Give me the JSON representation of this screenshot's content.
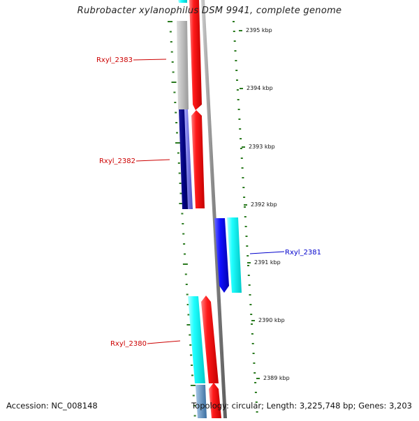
{
  "title": "Rubrobacter xylanophilus DSM 9941, complete genome",
  "accession_text": "Accession: NC_008148",
  "summary_text": "Topology: circular; Length: 3,225,748 bp; Genes: 3,203",
  "colors": {
    "gene_label_red": "#cc0000",
    "gene_label_blue": "#0000cc",
    "tick": "#2a7a1f",
    "red": "#ff0000",
    "cyan": "#00ffff",
    "blue": "#0000ff",
    "navy": "#000080",
    "gray": "#b8b8b8",
    "backbone": "#8a8a8a"
  },
  "scale_labels": [
    "2395 kbp",
    "2394 kbp",
    "2393 kbp",
    "2392 kbp",
    "2391 kbp",
    "2390 kbp",
    "2389 kbp"
  ],
  "gene_labels": [
    {
      "text": "Rxyl_2383",
      "color": "red"
    },
    {
      "text": "Rxyl_2382",
      "color": "red"
    },
    {
      "text": "Rxyl_2381",
      "color": "blue"
    },
    {
      "text": "Rxyl_2380",
      "color": "red"
    }
  ]
}
